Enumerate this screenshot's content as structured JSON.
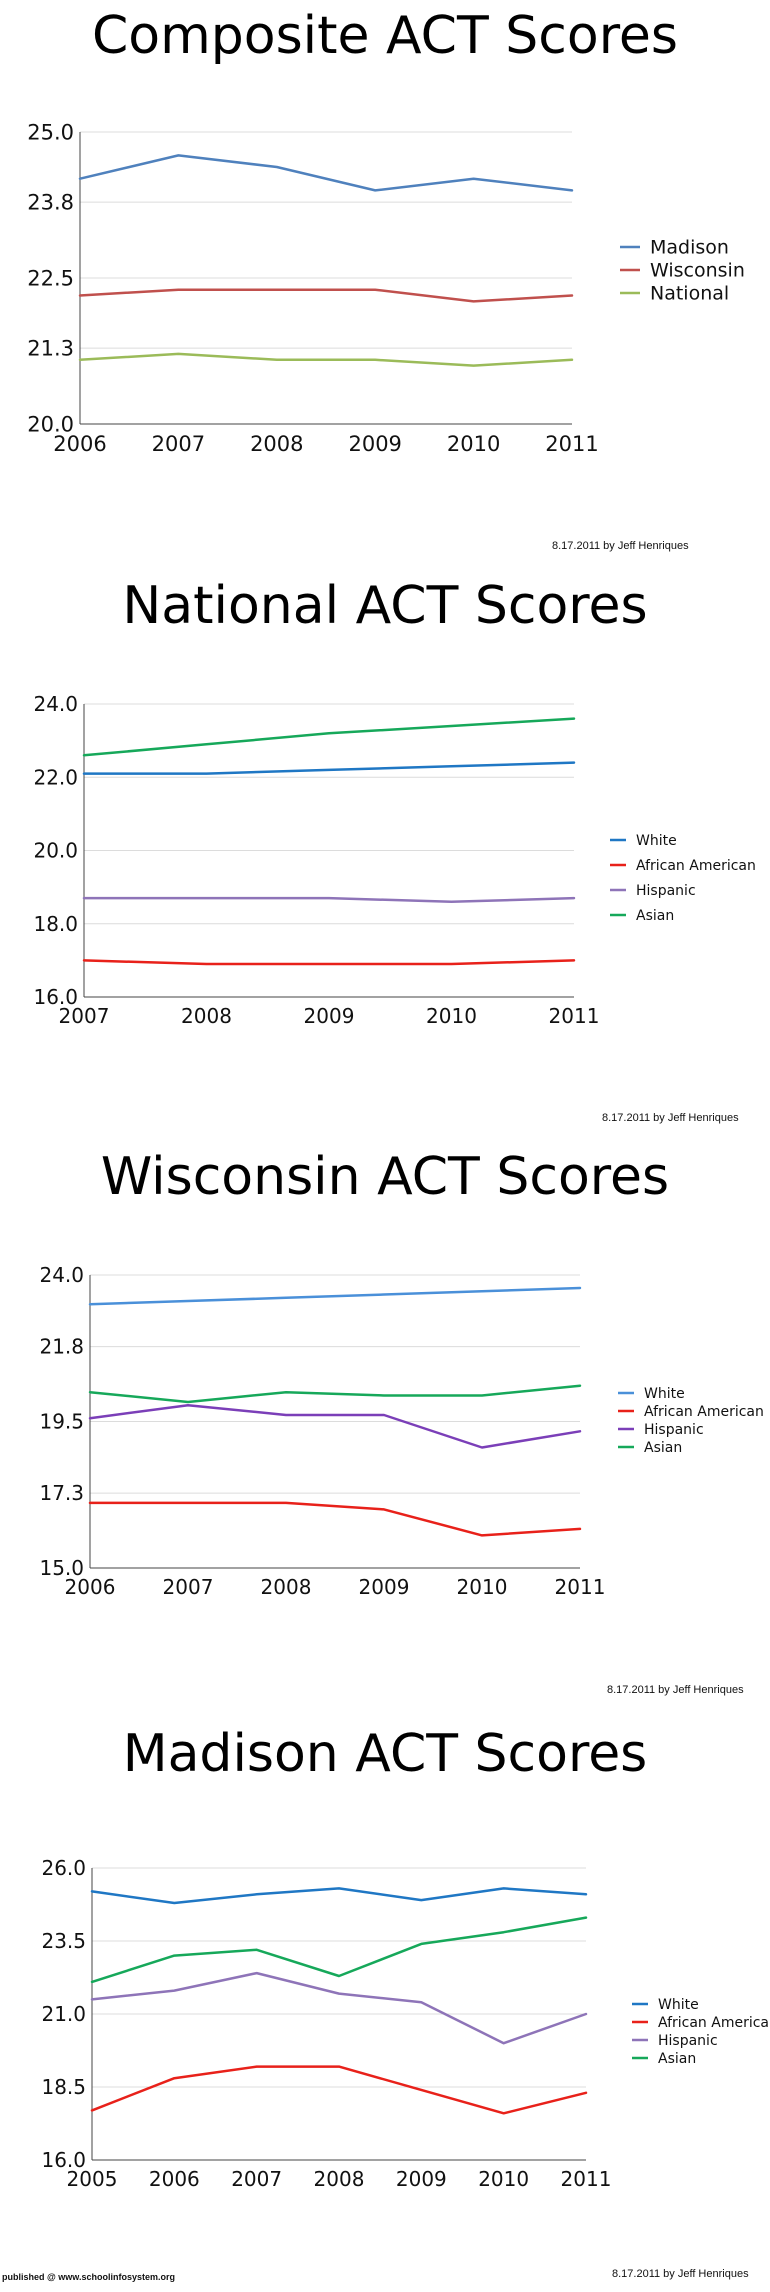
{
  "published": "published @ www.schoolinfosystem.org",
  "chart_data": [
    {
      "type": "line",
      "title": "Composite ACT Scores",
      "credit": "8.17.2011 by Jeff Henriques",
      "x": [
        "2006",
        "2007",
        "2008",
        "2009",
        "2010",
        "2011"
      ],
      "ylim": [
        20.0,
        25.0
      ],
      "yticks": [
        "20.0",
        "21.3",
        "22.5",
        "23.8",
        "25.0"
      ],
      "grid": true,
      "legend": "right",
      "series": [
        {
          "name": "Madison",
          "color": "#4f81bd",
          "values": [
            24.2,
            24.6,
            24.4,
            24.0,
            24.2,
            24.0
          ]
        },
        {
          "name": "Wisconsin",
          "color": "#c0504d",
          "values": [
            22.2,
            22.3,
            22.3,
            22.3,
            22.1,
            22.2
          ]
        },
        {
          "name": "National",
          "color": "#9bbb59",
          "values": [
            21.1,
            21.2,
            21.1,
            21.1,
            21.0,
            21.1
          ]
        }
      ]
    },
    {
      "type": "line",
      "title": "National ACT Scores",
      "credit": "8.17.2011 by Jeff Henriques",
      "x": [
        "2007",
        "2008",
        "2009",
        "2010",
        "2011"
      ],
      "ylim": [
        16.0,
        24.0
      ],
      "yticks": [
        "16.0",
        "18.0",
        "20.0",
        "22.0",
        "24.0"
      ],
      "grid": true,
      "legend": "right",
      "series": [
        {
          "name": "White",
          "color": "#1f77c4",
          "values": [
            22.1,
            22.1,
            22.2,
            22.3,
            22.4
          ]
        },
        {
          "name": "African American",
          "color": "#e8211a",
          "values": [
            17.0,
            16.9,
            16.9,
            16.9,
            17.0
          ]
        },
        {
          "name": "Hispanic",
          "color": "#8e74b8",
          "values": [
            18.7,
            18.7,
            18.7,
            18.6,
            18.7
          ]
        },
        {
          "name": "Asian",
          "color": "#16a85a",
          "values": [
            22.6,
            22.9,
            23.2,
            23.4,
            23.6
          ]
        }
      ]
    },
    {
      "type": "line",
      "title": "Wisconsin ACT Scores",
      "credit": "8.17.2011 by Jeff Henriques",
      "x": [
        "2006",
        "2007",
        "2008",
        "2009",
        "2010",
        "2011"
      ],
      "ylim": [
        15.0,
        24.0
      ],
      "yticks": [
        "15.0",
        "17.3",
        "19.5",
        "21.8",
        "24.0"
      ],
      "grid": true,
      "legend": "right",
      "series": [
        {
          "name": "White",
          "color": "#4a90d9",
          "values": [
            23.1,
            23.2,
            23.3,
            23.4,
            23.5,
            23.6
          ]
        },
        {
          "name": "African American",
          "color": "#e8211a",
          "values": [
            17.0,
            17.0,
            17.0,
            16.8,
            16.0,
            16.2
          ]
        },
        {
          "name": "Hispanic",
          "color": "#7b3fb8",
          "values": [
            19.6,
            20.0,
            19.7,
            19.7,
            18.7,
            19.2
          ]
        },
        {
          "name": "Asian",
          "color": "#16a85a",
          "values": [
            20.4,
            20.1,
            20.4,
            20.3,
            20.3,
            20.6
          ]
        }
      ]
    },
    {
      "type": "line",
      "title": "Madison ACT Scores",
      "credit": "8.17.2011 by Jeff Henriques",
      "x": [
        "2005",
        "2006",
        "2007",
        "2008",
        "2009",
        "2010",
        "2011"
      ],
      "ylim": [
        16.0,
        26.0
      ],
      "yticks": [
        "16.0",
        "18.5",
        "21.0",
        "23.5",
        "26.0"
      ],
      "grid": true,
      "legend": "right",
      "series": [
        {
          "name": "White",
          "color": "#1f77c4",
          "values": [
            25.2,
            24.8,
            25.1,
            25.3,
            24.9,
            25.3,
            25.1
          ]
        },
        {
          "name": "African American",
          "color": "#e8211a",
          "values": [
            17.7,
            18.8,
            19.2,
            19.2,
            18.4,
            17.6,
            18.3
          ]
        },
        {
          "name": "Hispanic",
          "color": "#8e74b8",
          "values": [
            21.5,
            21.8,
            22.4,
            21.7,
            21.4,
            20.0,
            21.0
          ]
        },
        {
          "name": "Asian",
          "color": "#16a85a",
          "values": [
            22.1,
            23.0,
            23.2,
            22.3,
            23.4,
            23.8,
            24.3
          ]
        }
      ]
    }
  ]
}
